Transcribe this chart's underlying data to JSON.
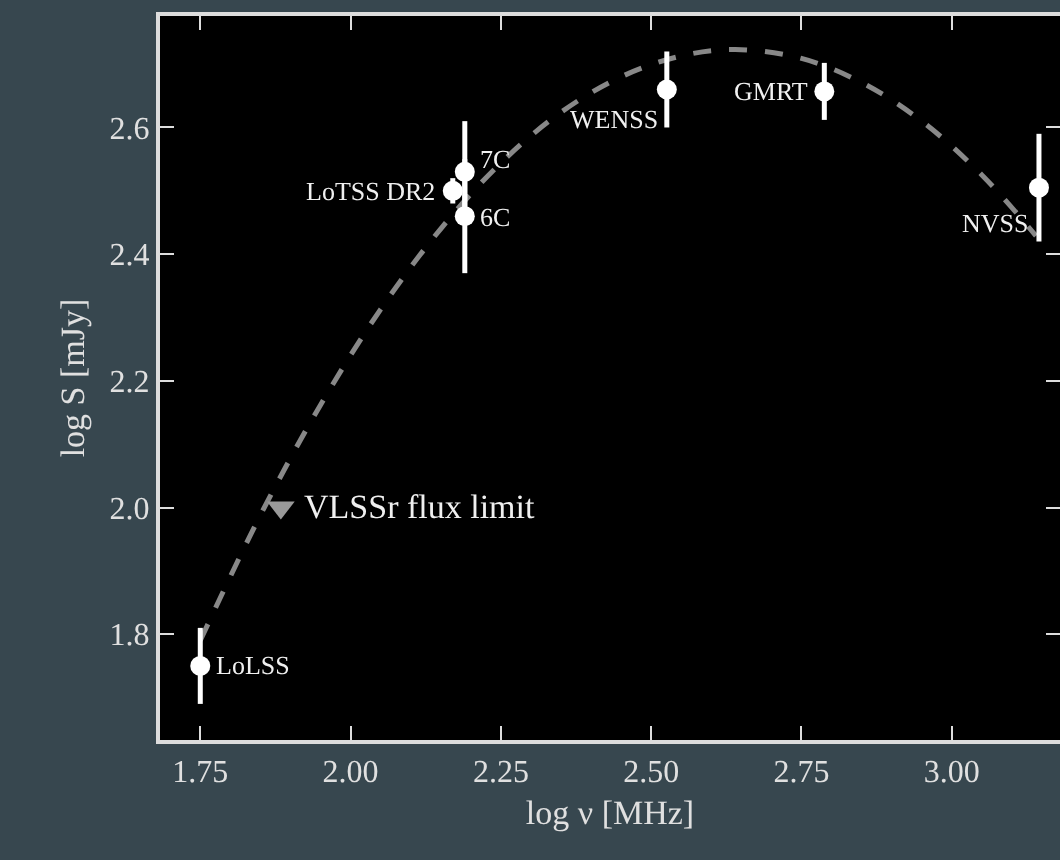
{
  "chart_data": {
    "type": "scatter",
    "xlabel": "log ν [MHz]",
    "ylabel": "log S [mJy]",
    "xlim": [
      1.683,
      3.18
    ],
    "ylim": [
      1.633,
      2.776
    ],
    "xticks": [
      {
        "value": 1.75,
        "label": "1.75"
      },
      {
        "value": 2.0,
        "label": "2.00"
      },
      {
        "value": 2.25,
        "label": "2.25"
      },
      {
        "value": 2.5,
        "label": "2.50"
      },
      {
        "value": 2.75,
        "label": "2.75"
      },
      {
        "value": 3.0,
        "label": "3.00"
      }
    ],
    "yticks": [
      1.8,
      {
        "value": 2.0,
        "label": "2.0"
      },
      2.2,
      2.4,
      2.6
    ],
    "grid": false,
    "series": [
      {
        "marker": "circle",
        "color": "#ffffff",
        "x": [
          1.75,
          2.17,
          2.19,
          2.19,
          2.526,
          2.788,
          3.145
        ],
        "values": [
          1.75,
          2.5,
          2.53,
          2.46,
          2.66,
          2.657,
          2.505
        ],
        "errors": [
          0.06,
          0.02,
          0.08,
          0.09,
          0.06,
          0.045,
          0.085
        ]
      },
      {
        "marker": "triangle",
        "color": "#999999",
        "x": [
          1.884
        ],
        "values": [
          2.0
        ]
      },
      {
        "type": "line",
        "line_style": "dashed",
        "marker": "none",
        "color": "#888888",
        "x": [
          1.75,
          1.85,
          1.95,
          2.05,
          2.15,
          2.25,
          2.35,
          2.45,
          2.55,
          2.64,
          2.75,
          2.85,
          2.95,
          3.05,
          3.14
        ],
        "values": [
          1.79,
          1.988,
          2.162,
          2.313,
          2.44,
          2.544,
          2.624,
          2.68,
          2.713,
          2.723,
          2.709,
          2.671,
          2.61,
          2.525,
          2.429
        ]
      }
    ],
    "annotations": [
      {
        "text": "LoLSS",
        "x": 1.75,
        "y": 1.75
      },
      {
        "text": "LoTSS DR2",
        "x": 2.17,
        "y": 2.5
      },
      {
        "text": "7C",
        "x": 2.19,
        "y": 2.53
      },
      {
        "text": "6C",
        "x": 2.19,
        "y": 2.46
      },
      {
        "text": "WENSS",
        "x": 2.526,
        "y": 2.66
      },
      {
        "text": "GMRT",
        "x": 2.788,
        "y": 2.657
      },
      {
        "text": "NVSS",
        "x": 3.145,
        "y": 2.505
      },
      {
        "text": "VLSSr flux limit",
        "x": 1.884,
        "y": 2.0
      }
    ]
  }
}
